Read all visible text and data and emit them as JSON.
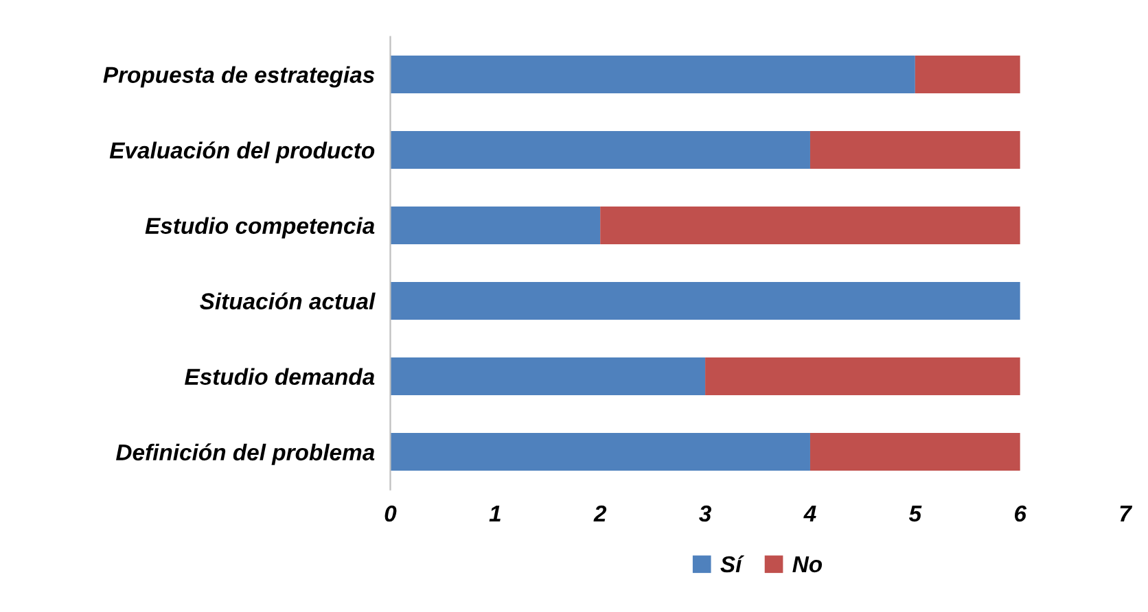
{
  "chart_data": {
    "type": "bar",
    "orientation": "horizontal",
    "stacked": true,
    "categories": [
      "Propuesta de estrategias",
      "Evaluación del producto",
      "Estudio competencia",
      "Situación actual",
      "Estudio demanda",
      "Definición del problema"
    ],
    "series": [
      {
        "name": "Sí",
        "color": "#4f81bd",
        "values": [
          5,
          4,
          2,
          6,
          3,
          4
        ]
      },
      {
        "name": "No",
        "color": "#c0504d",
        "values": [
          1,
          2,
          4,
          0,
          3,
          2
        ]
      }
    ],
    "xlim": [
      0,
      7
    ],
    "xticks": [
      0,
      1,
      2,
      3,
      4,
      5,
      6,
      7
    ],
    "grid": false,
    "legend": "bottom"
  }
}
